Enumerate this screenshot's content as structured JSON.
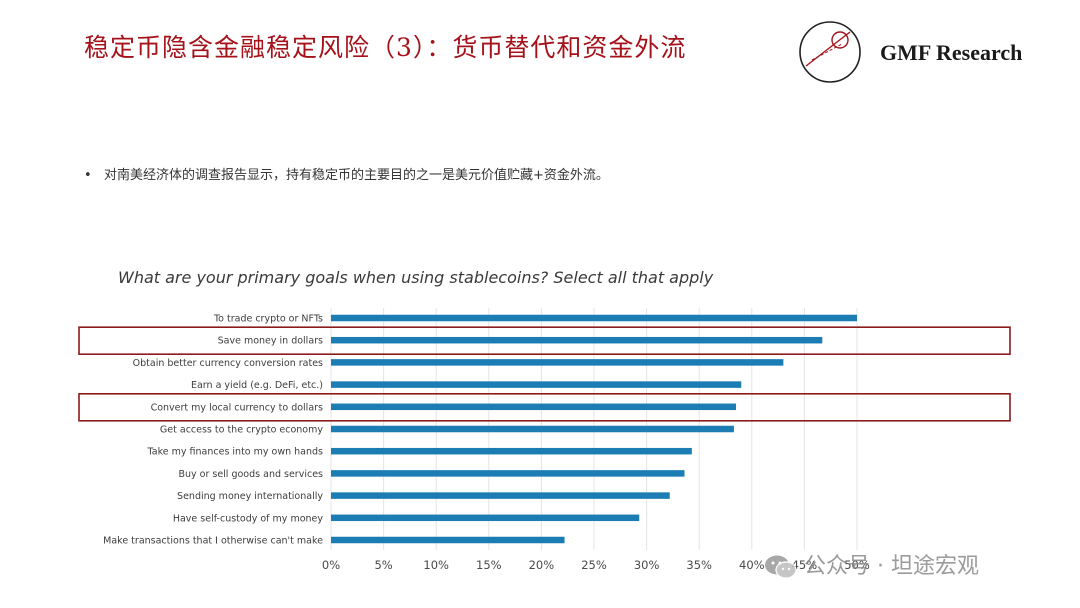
{
  "slide": {
    "title": "稳定币隐含金融稳定风险（3）：货币替代和资金外流",
    "brand": "GMF Research",
    "bullet": "对南美经济体的调查报告显示，持有稳定币的主要目的之一是美元价值贮藏+资金外流。",
    "watermark": "公众号 · 坦途宏观"
  },
  "colors": {
    "title": "#a5121a",
    "bar": "#1b7db3",
    "highlight": "#8b1a1a"
  },
  "chart_data": {
    "type": "bar",
    "orientation": "horizontal",
    "title": "What are your primary goals when using stablecoins? Select all that apply",
    "categories": [
      "To trade crypto or NFTs",
      "Save money in dollars",
      "Obtain better currency conversion rates",
      "Earn a yield (e.g. DeFi, etc.)",
      "Convert my local currency to dollars",
      "Get access to the crypto economy",
      "Take my finances into my own hands",
      "Buy or sell goods and services",
      "Sending money internationally",
      "Have self-custody of my money",
      "Make transactions that I otherwise can't make"
    ],
    "values": [
      50,
      46.7,
      43,
      39,
      38.5,
      38.3,
      34.3,
      33.6,
      32.2,
      29.3,
      22.2
    ],
    "xlim": [
      0,
      50
    ],
    "x_ticks": [
      "0%",
      "5%",
      "10%",
      "15%",
      "20%",
      "25%",
      "30%",
      "35%",
      "40%",
      "45%",
      "50%"
    ],
    "highlighted_categories": [
      "Save money in dollars",
      "Convert my local currency to dollars"
    ],
    "grid": "vertical"
  }
}
